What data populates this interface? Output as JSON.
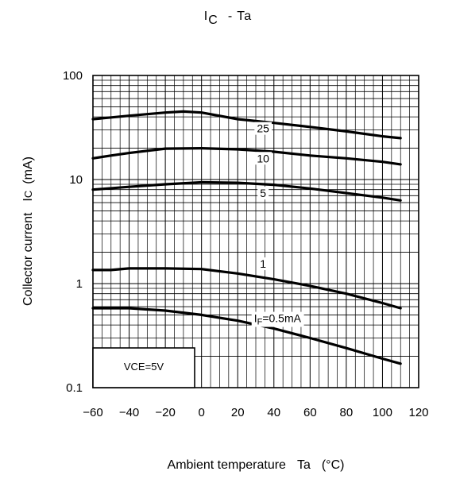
{
  "chart_data": {
    "type": "line",
    "title": {
      "main": "I",
      "sub": "C",
      "rest": "-  Ta"
    },
    "xlabel": {
      "main": "Ambient temperature",
      "symbol": "Ta",
      "unit": "(°C)"
    },
    "ylabel": {
      "main": "Collector current",
      "symbol": "I",
      "sub": "C",
      "unit": "(mA)"
    },
    "x_scale": "linear",
    "y_scale": "log",
    "xlim": [
      -60,
      120
    ],
    "ylim": [
      0.1,
      100
    ],
    "x_ticks": [
      "−60",
      "−40",
      "−20",
      "0",
      "20",
      "40",
      "60",
      "80",
      "100",
      "120"
    ],
    "y_ticks": [
      "0.1",
      "1",
      "10",
      "100"
    ],
    "grid": true,
    "annotation": "VCE=5V",
    "series": [
      {
        "name": "25",
        "x": [
          -60,
          -40,
          -20,
          -10,
          0,
          20,
          40,
          60,
          80,
          100,
          110
        ],
        "y": [
          38,
          41,
          44,
          45,
          44,
          38,
          35,
          32,
          29,
          26,
          25
        ]
      },
      {
        "name": "10",
        "x": [
          -60,
          -50,
          -40,
          -20,
          0,
          20,
          40,
          60,
          80,
          100,
          110
        ],
        "y": [
          16,
          17,
          18,
          19.8,
          20,
          19.5,
          18.5,
          17,
          16,
          14.8,
          14
        ]
      },
      {
        "name": "5",
        "x": [
          -60,
          -40,
          -20,
          -5,
          0,
          20,
          40,
          60,
          80,
          100,
          110
        ],
        "y": [
          8,
          8.5,
          9,
          9.3,
          9.4,
          9.3,
          8.9,
          8.2,
          7.4,
          6.7,
          6.3
        ]
      },
      {
        "name": "1",
        "x": [
          -60,
          -50,
          -40,
          -20,
          0,
          20,
          40,
          60,
          80,
          100,
          110
        ],
        "y": [
          1.35,
          1.35,
          1.4,
          1.4,
          1.38,
          1.25,
          1.1,
          0.95,
          0.8,
          0.65,
          0.58
        ]
      },
      {
        "name": "IF=0.5mA",
        "label": {
          "main": "I",
          "sub": "F",
          "rest": "=0.5mA"
        },
        "x": [
          -60,
          -40,
          -20,
          0,
          20,
          40,
          60,
          80,
          100,
          110
        ],
        "y": [
          0.58,
          0.58,
          0.55,
          0.5,
          0.44,
          0.37,
          0.3,
          0.24,
          0.19,
          0.17
        ]
      }
    ]
  }
}
